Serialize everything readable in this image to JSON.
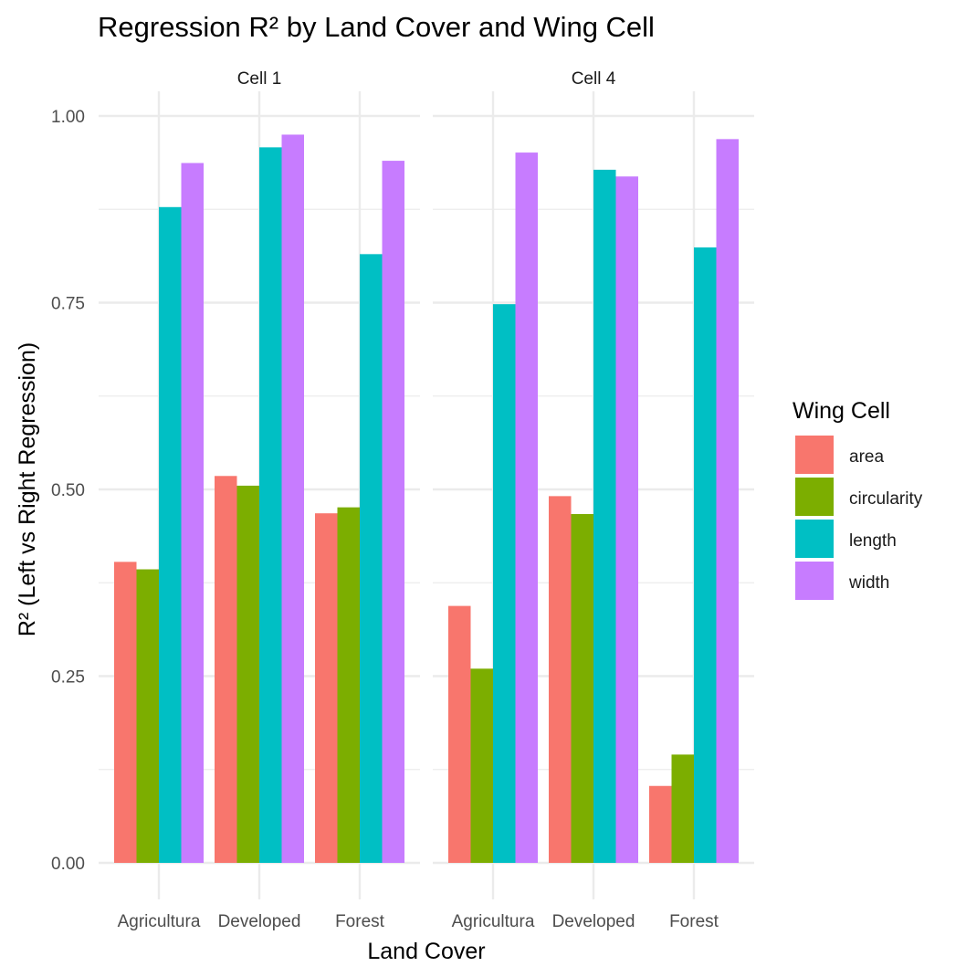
{
  "chart_data": {
    "type": "bar",
    "title": "Regression R² by Land Cover and Wing Cell",
    "xlabel": "Land Cover",
    "ylabel": "R² (Left vs Right Regression)",
    "ylim": [
      0,
      1.0
    ],
    "yticks": [
      "0.00",
      "0.25",
      "0.50",
      "0.75",
      "1.00"
    ],
    "ytick_values": [
      0,
      0.25,
      0.5,
      0.75,
      1.0
    ],
    "categories": [
      "Agricultura",
      "Developed",
      "Forest"
    ],
    "grid": true,
    "legend": {
      "title": "Wing Cell",
      "position": "right",
      "entries": [
        "area",
        "circularity",
        "length",
        "width"
      ]
    },
    "colors": {
      "area": "#F8766D",
      "circularity": "#7CAE00",
      "length": "#00BFC4",
      "width": "#C77CFF"
    },
    "panels": [
      {
        "label": "Cell 1",
        "series": [
          {
            "name": "area",
            "values": [
              0.403,
              0.518,
              0.468
            ]
          },
          {
            "name": "circularity",
            "values": [
              0.393,
              0.505,
              0.476
            ]
          },
          {
            "name": "length",
            "values": [
              0.878,
              0.958,
              0.815
            ]
          },
          {
            "name": "width",
            "values": [
              0.937,
              0.975,
              0.94
            ]
          }
        ]
      },
      {
        "label": "Cell 4",
        "series": [
          {
            "name": "area",
            "values": [
              0.344,
              0.491,
              0.103
            ]
          },
          {
            "name": "circularity",
            "values": [
              0.26,
              0.467,
              0.145
            ]
          },
          {
            "name": "length",
            "values": [
              0.748,
              0.928,
              0.824
            ]
          },
          {
            "name": "width",
            "values": [
              0.951,
              0.919,
              0.969
            ]
          }
        ]
      }
    ]
  }
}
